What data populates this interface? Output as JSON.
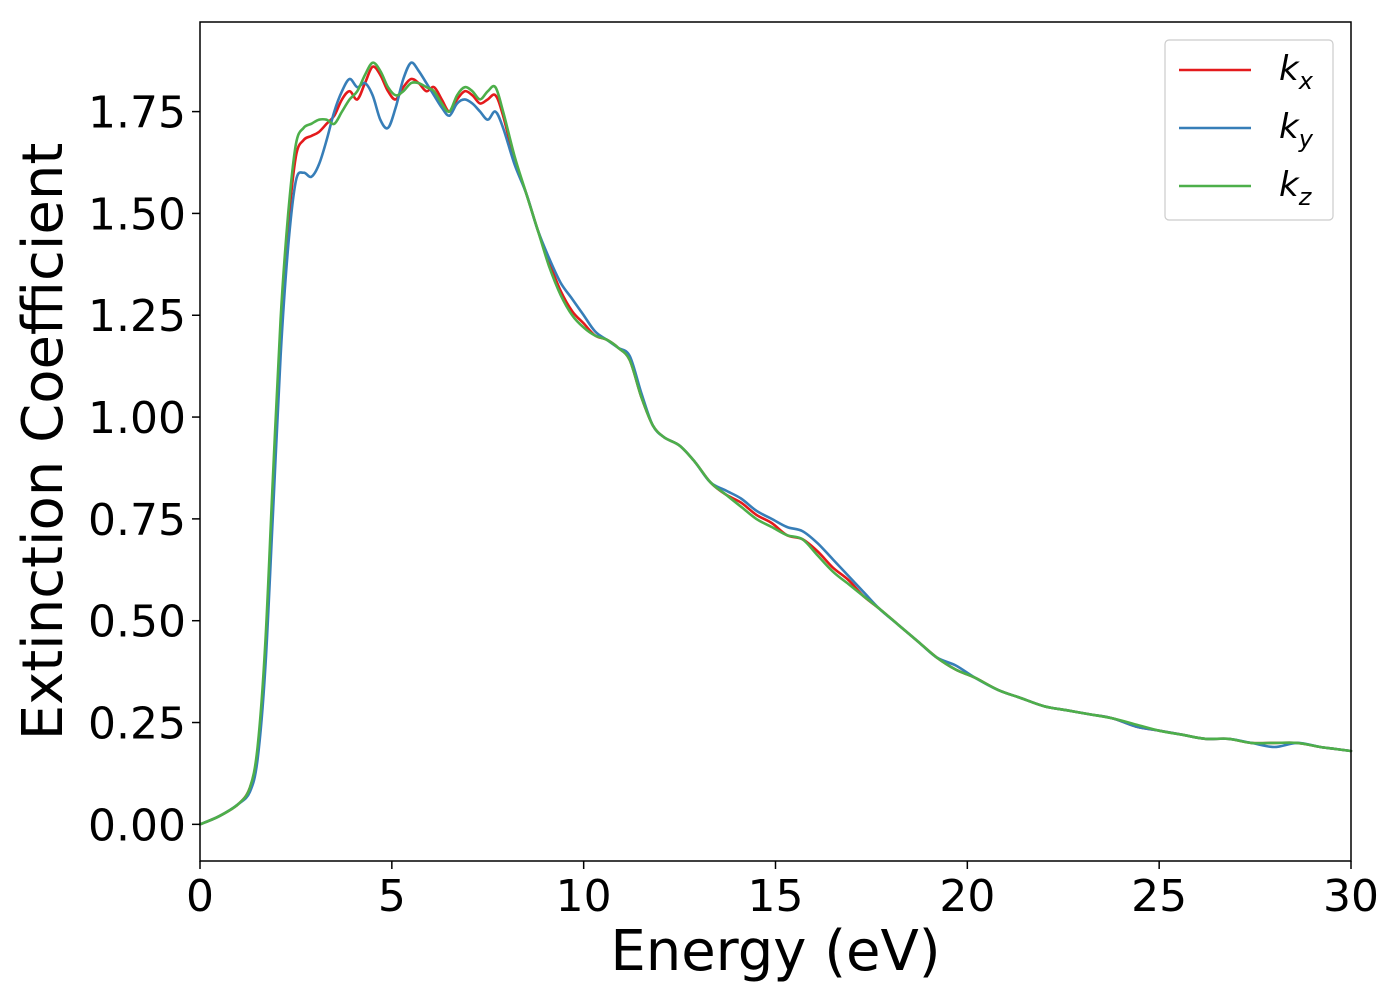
{
  "chart_data": {
    "type": "line",
    "title": "",
    "xlabel": "Energy (eV)",
    "ylabel": "Extinction Coefficient",
    "xlim": [
      0,
      30
    ],
    "ylim": [
      -0.09,
      1.97
    ],
    "xticks": [
      0,
      5,
      10,
      15,
      20,
      25,
      30
    ],
    "xtick_labels": [
      "0",
      "5",
      "10",
      "15",
      "20",
      "25",
      "30"
    ],
    "yticks": [
      0,
      0.25,
      0.5,
      0.75,
      1.0,
      1.25,
      1.5,
      1.75
    ],
    "ytick_labels": [
      "0.00",
      "0.25",
      "0.50",
      "0.75",
      "1.00",
      "1.25",
      "1.50",
      "1.75"
    ],
    "grid": false,
    "legend_position": "top-right",
    "series": [
      {
        "name": "k_x",
        "legend_base": "k",
        "legend_sub": "x",
        "color": "#e41a1c",
        "x": [
          0,
          0.5,
          1.0,
          1.3,
          1.5,
          1.7,
          1.9,
          2.1,
          2.3,
          2.5,
          2.7,
          2.9,
          3.1,
          3.3,
          3.5,
          3.7,
          3.9,
          4.1,
          4.3,
          4.5,
          4.7,
          4.9,
          5.1,
          5.3,
          5.5,
          5.7,
          5.9,
          6.1,
          6.3,
          6.5,
          6.7,
          6.9,
          7.1,
          7.3,
          7.5,
          7.7,
          7.9,
          8.2,
          8.5,
          8.8,
          9.1,
          9.4,
          9.7,
          10.0,
          10.3,
          10.6,
          10.9,
          11.2,
          11.5,
          11.8,
          12.1,
          12.5,
          12.9,
          13.3,
          13.7,
          14.1,
          14.5,
          14.9,
          15.3,
          15.7,
          16.1,
          16.5,
          16.9,
          17.3,
          17.7,
          18.2,
          18.7,
          19.2,
          19.7,
          20.2,
          20.8,
          21.4,
          22.0,
          22.6,
          23.2,
          23.8,
          24.4,
          25.0,
          25.6,
          26.2,
          26.8,
          27.4,
          28.0,
          28.6,
          29.2,
          29.6,
          30.0
        ],
        "y": [
          0.0,
          0.02,
          0.05,
          0.09,
          0.18,
          0.42,
          0.82,
          1.2,
          1.47,
          1.64,
          1.68,
          1.69,
          1.7,
          1.72,
          1.74,
          1.78,
          1.8,
          1.78,
          1.82,
          1.86,
          1.84,
          1.8,
          1.78,
          1.81,
          1.83,
          1.82,
          1.8,
          1.81,
          1.78,
          1.75,
          1.78,
          1.8,
          1.79,
          1.77,
          1.78,
          1.79,
          1.74,
          1.63,
          1.55,
          1.46,
          1.38,
          1.31,
          1.26,
          1.23,
          1.2,
          1.19,
          1.17,
          1.14,
          1.05,
          0.98,
          0.95,
          0.93,
          0.89,
          0.84,
          0.81,
          0.79,
          0.76,
          0.74,
          0.71,
          0.7,
          0.67,
          0.63,
          0.6,
          0.56,
          0.53,
          0.49,
          0.45,
          0.41,
          0.38,
          0.36,
          0.33,
          0.31,
          0.29,
          0.28,
          0.27,
          0.26,
          0.24,
          0.23,
          0.22,
          0.21,
          0.21,
          0.2,
          0.2,
          0.2,
          0.19,
          0.185,
          0.18
        ]
      },
      {
        "name": "k_y",
        "legend_base": "k",
        "legend_sub": "y",
        "color": "#377eb8",
        "x": [
          0,
          0.5,
          1.0,
          1.3,
          1.5,
          1.7,
          1.9,
          2.1,
          2.3,
          2.5,
          2.7,
          2.9,
          3.1,
          3.3,
          3.5,
          3.7,
          3.9,
          4.1,
          4.3,
          4.5,
          4.7,
          4.9,
          5.1,
          5.3,
          5.5,
          5.7,
          5.9,
          6.1,
          6.3,
          6.5,
          6.7,
          6.9,
          7.1,
          7.3,
          7.5,
          7.7,
          7.9,
          8.2,
          8.5,
          8.8,
          9.1,
          9.4,
          9.7,
          10.0,
          10.3,
          10.6,
          10.9,
          11.2,
          11.5,
          11.8,
          12.1,
          12.5,
          12.9,
          13.3,
          13.7,
          14.1,
          14.5,
          14.9,
          15.3,
          15.7,
          16.1,
          16.5,
          16.9,
          17.3,
          17.7,
          18.2,
          18.7,
          19.2,
          19.7,
          20.2,
          20.8,
          21.4,
          22.0,
          22.6,
          23.2,
          23.8,
          24.4,
          25.0,
          25.6,
          26.2,
          26.8,
          27.4,
          28.0,
          28.6,
          29.2,
          29.6,
          30.0
        ],
        "y": [
          0.0,
          0.02,
          0.05,
          0.08,
          0.16,
          0.38,
          0.76,
          1.15,
          1.42,
          1.58,
          1.6,
          1.59,
          1.62,
          1.68,
          1.75,
          1.8,
          1.83,
          1.81,
          1.82,
          1.79,
          1.73,
          1.71,
          1.76,
          1.83,
          1.87,
          1.85,
          1.82,
          1.79,
          1.76,
          1.74,
          1.77,
          1.78,
          1.77,
          1.75,
          1.73,
          1.75,
          1.71,
          1.62,
          1.55,
          1.46,
          1.39,
          1.33,
          1.29,
          1.25,
          1.21,
          1.19,
          1.17,
          1.15,
          1.06,
          0.98,
          0.95,
          0.93,
          0.89,
          0.84,
          0.82,
          0.8,
          0.77,
          0.75,
          0.73,
          0.72,
          0.69,
          0.65,
          0.61,
          0.57,
          0.53,
          0.49,
          0.45,
          0.41,
          0.39,
          0.36,
          0.33,
          0.31,
          0.29,
          0.28,
          0.27,
          0.26,
          0.24,
          0.23,
          0.22,
          0.21,
          0.21,
          0.2,
          0.19,
          0.2,
          0.19,
          0.185,
          0.18
        ]
      },
      {
        "name": "k_z",
        "legend_base": "k",
        "legend_sub": "z",
        "color": "#4daf4a",
        "x": [
          0,
          0.5,
          1.0,
          1.3,
          1.5,
          1.7,
          1.9,
          2.1,
          2.3,
          2.5,
          2.7,
          2.9,
          3.1,
          3.3,
          3.5,
          3.7,
          3.9,
          4.1,
          4.3,
          4.5,
          4.7,
          4.9,
          5.1,
          5.3,
          5.5,
          5.7,
          5.9,
          6.1,
          6.3,
          6.5,
          6.7,
          6.9,
          7.1,
          7.3,
          7.5,
          7.7,
          7.9,
          8.2,
          8.5,
          8.8,
          9.1,
          9.4,
          9.7,
          10.0,
          10.3,
          10.6,
          10.9,
          11.2,
          11.5,
          11.8,
          12.1,
          12.5,
          12.9,
          13.3,
          13.7,
          14.1,
          14.5,
          14.9,
          15.3,
          15.7,
          16.1,
          16.5,
          16.9,
          17.3,
          17.7,
          18.2,
          18.7,
          19.2,
          19.7,
          20.2,
          20.8,
          21.4,
          22.0,
          22.6,
          23.2,
          23.8,
          24.4,
          25.0,
          25.6,
          26.2,
          26.8,
          27.4,
          28.0,
          28.6,
          29.2,
          29.6,
          30.0
        ],
        "y": [
          0.0,
          0.02,
          0.05,
          0.09,
          0.19,
          0.44,
          0.85,
          1.24,
          1.5,
          1.67,
          1.71,
          1.72,
          1.73,
          1.73,
          1.72,
          1.75,
          1.78,
          1.8,
          1.84,
          1.87,
          1.85,
          1.81,
          1.79,
          1.8,
          1.82,
          1.82,
          1.81,
          1.8,
          1.77,
          1.75,
          1.79,
          1.81,
          1.8,
          1.78,
          1.8,
          1.81,
          1.75,
          1.64,
          1.55,
          1.46,
          1.37,
          1.3,
          1.25,
          1.22,
          1.2,
          1.19,
          1.17,
          1.14,
          1.05,
          0.98,
          0.95,
          0.93,
          0.89,
          0.84,
          0.81,
          0.78,
          0.75,
          0.73,
          0.71,
          0.7,
          0.66,
          0.62,
          0.59,
          0.56,
          0.53,
          0.49,
          0.45,
          0.41,
          0.38,
          0.36,
          0.33,
          0.31,
          0.29,
          0.28,
          0.27,
          0.26,
          0.245,
          0.23,
          0.22,
          0.21,
          0.21,
          0.2,
          0.2,
          0.2,
          0.19,
          0.185,
          0.18
        ]
      }
    ]
  }
}
